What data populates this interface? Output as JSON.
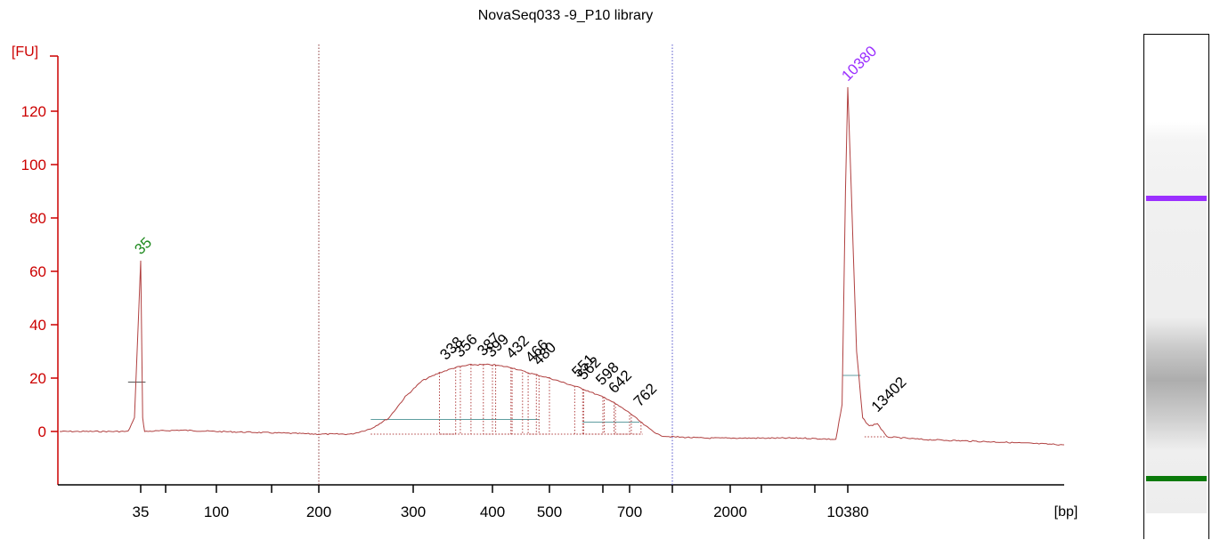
{
  "chart_data": {
    "type": "line",
    "title": "NovaSeq033 -9_P10 library",
    "ylabel": "[FU]",
    "xlabel": "[bp]",
    "ylim": [
      -19,
      140
    ],
    "yticks": [
      0,
      20,
      40,
      60,
      80,
      100,
      120
    ],
    "xtick_labels": [
      "35",
      "100",
      "200",
      "300",
      "400",
      "500",
      "700",
      "2000",
      "10380"
    ],
    "vertical_markers": [
      {
        "x_bp": 200,
        "color": "#8b3a3a"
      },
      {
        "x_bp": 1000,
        "color": "#5555cc"
      }
    ],
    "marker_peaks": [
      {
        "label": "35",
        "bp": 35,
        "fu": 64,
        "color": "#1f8a1f"
      },
      {
        "label": "10380",
        "bp": 10380,
        "fu": 129,
        "color": "#9b30ff"
      }
    ],
    "peak_labels": [
      "338",
      "356",
      "387",
      "399",
      "432",
      "466",
      "480",
      "551",
      "562",
      "598",
      "642",
      "762",
      "13402"
    ],
    "series": [
      {
        "color": "#b04040",
        "points": [
          [
            24,
            0
          ],
          [
            33,
            0
          ],
          [
            34,
            5
          ],
          [
            35,
            64
          ],
          [
            36,
            5
          ],
          [
            37,
            0
          ],
          [
            60,
            0.5
          ],
          [
            100,
            0
          ],
          [
            150,
            -0.5
          ],
          [
            200,
            -1
          ],
          [
            230,
            -1
          ],
          [
            250,
            1
          ],
          [
            270,
            5
          ],
          [
            290,
            13
          ],
          [
            310,
            19
          ],
          [
            330,
            22
          ],
          [
            350,
            24
          ],
          [
            370,
            25
          ],
          [
            400,
            25
          ],
          [
            430,
            24
          ],
          [
            460,
            22
          ],
          [
            500,
            20
          ],
          [
            560,
            16
          ],
          [
            620,
            12
          ],
          [
            700,
            7
          ],
          [
            800,
            2
          ],
          [
            900,
            -1.5
          ],
          [
            1000,
            -2
          ],
          [
            1500,
            -2.5
          ],
          [
            3000,
            -2.5
          ],
          [
            6000,
            -2.5
          ],
          [
            9000,
            -3
          ],
          [
            9700,
            10
          ],
          [
            10100,
            90
          ],
          [
            10380,
            129
          ],
          [
            10700,
            90
          ],
          [
            11200,
            30
          ],
          [
            11800,
            5
          ],
          [
            12500,
            2
          ],
          [
            13402,
            3
          ],
          [
            14500,
            -2
          ],
          [
            20000,
            -3
          ],
          [
            40000,
            -4
          ],
          [
            70000,
            -5
          ]
        ]
      }
    ],
    "gel_bands": [
      {
        "name": "upper marker",
        "color": "#9b30ff"
      },
      {
        "name": "lower marker",
        "color": "#0a7a0a"
      }
    ]
  }
}
